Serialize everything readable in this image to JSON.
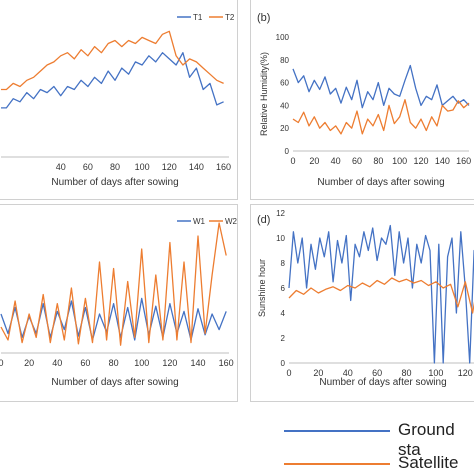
{
  "colors": {
    "blue": "#4472C4",
    "orange": "#ED7D31"
  },
  "legend": {
    "ground": "Ground sta",
    "satellite": "Satellite"
  },
  "chart_data": [
    {
      "id": "a",
      "type": "line",
      "panel_label": "",
      "xlabel": "Number of days after sowing",
      "ylabel": "",
      "xlim": [
        -4,
        164
      ],
      "ylim": [
        0,
        45
      ],
      "xticks": [
        40,
        60,
        80,
        100,
        120,
        140,
        160
      ],
      "yticks": [],
      "legend_position": "top-right",
      "series": [
        {
          "name": "T1",
          "color": "#4472C4",
          "x": [
            -4,
            0,
            5,
            10,
            15,
            20,
            25,
            30,
            35,
            40,
            45,
            50,
            55,
            60,
            65,
            70,
            75,
            80,
            85,
            90,
            95,
            100,
            105,
            110,
            115,
            120,
            125,
            130,
            135,
            140,
            145,
            150,
            155,
            160
          ],
          "y": [
            16,
            16,
            19,
            18,
            21,
            19,
            22,
            21,
            23,
            20,
            23,
            22,
            25,
            23,
            26,
            24,
            28,
            25,
            29,
            27,
            31,
            30,
            33,
            31,
            34,
            32,
            30,
            34,
            26,
            29,
            22,
            24,
            17,
            18
          ]
        },
        {
          "name": "T2",
          "color": "#ED7D31",
          "x": [
            -4,
            0,
            5,
            10,
            15,
            20,
            25,
            30,
            35,
            40,
            45,
            50,
            55,
            60,
            65,
            70,
            75,
            80,
            85,
            90,
            95,
            100,
            105,
            110,
            115,
            120,
            125,
            130,
            135,
            140,
            145,
            150,
            155,
            160
          ],
          "y": [
            22,
            22,
            24,
            23,
            25,
            26,
            28,
            30,
            31,
            33,
            34,
            32,
            35,
            33,
            36,
            34,
            37,
            38,
            36,
            38,
            37,
            39,
            38,
            37,
            40,
            41,
            33,
            30,
            32,
            31,
            29,
            27,
            25,
            24
          ]
        }
      ]
    },
    {
      "id": "b",
      "type": "line",
      "panel_label": "(b)",
      "xlabel": "Number of days after sowing",
      "ylabel": "Relative Humidity(%)",
      "xlim": [
        0,
        165
      ],
      "ylim": [
        0,
        100
      ],
      "xticks": [
        0,
        20,
        40,
        60,
        80,
        100,
        120,
        140,
        160
      ],
      "yticks": [
        0,
        20,
        40,
        60,
        80,
        100
      ],
      "legend_position": "none",
      "series": [
        {
          "name": "",
          "color": "#4472C4",
          "x": [
            0,
            5,
            10,
            15,
            20,
            25,
            30,
            35,
            40,
            45,
            50,
            55,
            60,
            65,
            70,
            75,
            80,
            85,
            90,
            95,
            100,
            105,
            110,
            115,
            120,
            125,
            130,
            135,
            140,
            145,
            150,
            155,
            160,
            165
          ],
          "y": [
            72,
            60,
            66,
            52,
            62,
            54,
            65,
            50,
            55,
            42,
            56,
            45,
            62,
            38,
            52,
            45,
            60,
            40,
            55,
            50,
            48,
            62,
            75,
            55,
            40,
            48,
            45,
            58,
            40,
            44,
            48,
            42,
            45,
            40
          ]
        },
        {
          "name": "",
          "color": "#ED7D31",
          "x": [
            0,
            5,
            10,
            15,
            20,
            25,
            30,
            35,
            40,
            45,
            50,
            55,
            60,
            65,
            70,
            75,
            80,
            85,
            90,
            95,
            100,
            105,
            110,
            115,
            120,
            125,
            130,
            135,
            140,
            145,
            150,
            155,
            160,
            165
          ],
          "y": [
            28,
            25,
            34,
            22,
            30,
            20,
            25,
            18,
            22,
            15,
            25,
            20,
            35,
            15,
            28,
            22,
            32,
            18,
            40,
            24,
            30,
            45,
            25,
            20,
            28,
            18,
            30,
            22,
            40,
            35,
            36,
            44,
            38,
            42
          ]
        }
      ]
    },
    {
      "id": "c",
      "type": "line",
      "panel_label": "",
      "xlabel": "Number of days after sowing",
      "ylabel": "",
      "xlim": [
        0,
        162
      ],
      "ylim": [
        0,
        10
      ],
      "xticks": [
        0,
        20,
        40,
        60,
        80,
        100,
        120,
        140,
        160
      ],
      "yticks": [],
      "legend_position": "top-right",
      "series": [
        {
          "name": "W1",
          "color": "#4472C4",
          "x": [
            0,
            5,
            10,
            15,
            20,
            25,
            30,
            35,
            40,
            45,
            50,
            55,
            60,
            65,
            70,
            75,
            80,
            85,
            90,
            95,
            100,
            105,
            110,
            115,
            120,
            125,
            130,
            135,
            140,
            145,
            150,
            155,
            160
          ],
          "y": [
            3.0,
            1.5,
            3.5,
            1.2,
            2.8,
            1.5,
            3.8,
            1.2,
            3.2,
            1.8,
            4.0,
            1.3,
            3.5,
            1.0,
            3.0,
            1.6,
            3.8,
            1.2,
            3.5,
            1.0,
            4.2,
            1.4,
            3.6,
            1.2,
            3.8,
            1.5,
            3.2,
            1.0,
            3.4,
            1.4,
            3.0,
            1.8,
            3.2
          ]
        },
        {
          "name": "W2",
          "color": "#ED7D31",
          "x": [
            0,
            5,
            10,
            15,
            20,
            25,
            30,
            35,
            40,
            45,
            50,
            55,
            60,
            65,
            70,
            75,
            80,
            85,
            90,
            95,
            100,
            105,
            110,
            115,
            120,
            125,
            130,
            135,
            140,
            145,
            150,
            155,
            160
          ],
          "y": [
            2.0,
            1.0,
            4.0,
            0.8,
            3.0,
            1.2,
            4.5,
            0.8,
            3.8,
            1.0,
            5.0,
            0.7,
            4.2,
            0.8,
            7.0,
            1.0,
            6.5,
            0.6,
            5.5,
            1.2,
            8.0,
            0.8,
            6.0,
            1.0,
            8.5,
            1.0,
            7.0,
            0.8,
            9.0,
            1.5,
            6.0,
            10.0,
            7.5
          ]
        }
      ]
    },
    {
      "id": "d",
      "type": "line",
      "panel_label": "(d)",
      "xlabel": "Number of days after sowing",
      "ylabel": "Sunshine hour",
      "xlim": [
        0,
        128
      ],
      "ylim": [
        0,
        12
      ],
      "xticks": [
        0,
        20,
        40,
        60,
        80,
        100,
        120
      ],
      "yticks": [
        0,
        2,
        4,
        6,
        8,
        10,
        12
      ],
      "legend_position": "none",
      "series": [
        {
          "name": "",
          "color": "#4472C4",
          "x": [
            0,
            3,
            6,
            9,
            12,
            15,
            18,
            21,
            24,
            27,
            30,
            33,
            36,
            39,
            42,
            45,
            48,
            51,
            54,
            57,
            60,
            63,
            66,
            69,
            72,
            75,
            78,
            81,
            84,
            87,
            90,
            93,
            96,
            99,
            102,
            105,
            108,
            111,
            114,
            117,
            120,
            123,
            126,
            128
          ],
          "y": [
            6.0,
            10.5,
            8.0,
            10.0,
            6.0,
            9.5,
            7.5,
            10.0,
            8.5,
            10.5,
            6.5,
            9.8,
            8.0,
            10.2,
            5.0,
            9.5,
            8.5,
            10.5,
            9.0,
            10.8,
            8.2,
            10.0,
            9.5,
            11.0,
            7.0,
            10.5,
            8.0,
            10.0,
            6.0,
            9.5,
            8.0,
            10.2,
            9.0,
            0.0,
            9.5,
            0.0,
            8.5,
            10.0,
            4.0,
            10.5,
            6.0,
            0.0,
            9.0,
            5.5
          ]
        },
        {
          "name": "",
          "color": "#ED7D31",
          "x": [
            0,
            5,
            10,
            15,
            20,
            25,
            30,
            35,
            40,
            45,
            50,
            55,
            60,
            65,
            70,
            75,
            80,
            85,
            90,
            95,
            100,
            105,
            110,
            115,
            120,
            125,
            128
          ],
          "y": [
            5.2,
            5.8,
            5.5,
            6.0,
            5.6,
            5.9,
            6.1,
            5.8,
            6.2,
            6.0,
            6.4,
            6.1,
            6.6,
            6.3,
            6.8,
            6.5,
            6.7,
            6.4,
            6.6,
            6.2,
            6.5,
            6.0,
            6.3,
            4.5,
            6.5,
            4.0,
            6.0
          ]
        }
      ]
    }
  ]
}
